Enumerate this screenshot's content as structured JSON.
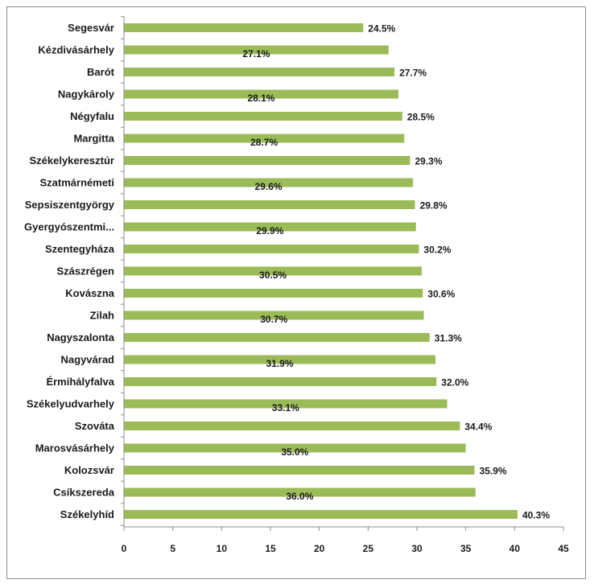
{
  "chart_data": {
    "type": "bar",
    "orientation": "horizontal",
    "categories": [
      "Segesvár",
      "Kézdivásárhely",
      "Barót",
      "Nagykároly",
      "Négyfalu",
      "Margitta",
      "Székelykeresztúr",
      "Szatmárnémeti",
      "Sepsiszentgyörgy",
      "Gyergyószentmi...",
      "Szentegyháza",
      "Szászrégen",
      "Kovászna",
      "Zilah",
      "Nagyszalonta",
      "Nagyvárad",
      "Érmihályfalva",
      "Székelyudvarhely",
      "Szováta",
      "Marosvásárhely",
      "Kolozsvár",
      "Csíkszereda",
      "Székelyhíd"
    ],
    "values": [
      24.5,
      27.1,
      27.7,
      28.1,
      28.5,
      28.7,
      29.3,
      29.6,
      29.8,
      29.9,
      30.2,
      30.5,
      30.6,
      30.7,
      31.3,
      31.9,
      32.0,
      33.1,
      34.4,
      35.0,
      35.9,
      36.0,
      40.3
    ],
    "value_labels": [
      "24.5%",
      "27.1%",
      "27.7%",
      "28.1%",
      "28.5%",
      "28.7%",
      "29.3%",
      "29.6%",
      "29.8%",
      "29.9%",
      "30.2%",
      "30.5%",
      "30.6%",
      "30.7%",
      "31.3%",
      "31.9%",
      "32.0%",
      "33.1%",
      "34.4%",
      "35.0%",
      "35.9%",
      "36.0%",
      "40.3%"
    ],
    "xlim": [
      0,
      45
    ],
    "x_ticks": [
      "0",
      "5",
      "10",
      "15",
      "20",
      "25",
      "30",
      "35",
      "40",
      "45"
    ],
    "bar_color": "#9bbb59",
    "grid": false,
    "legend": "none",
    "title": "",
    "xlabel": "",
    "ylabel": ""
  }
}
